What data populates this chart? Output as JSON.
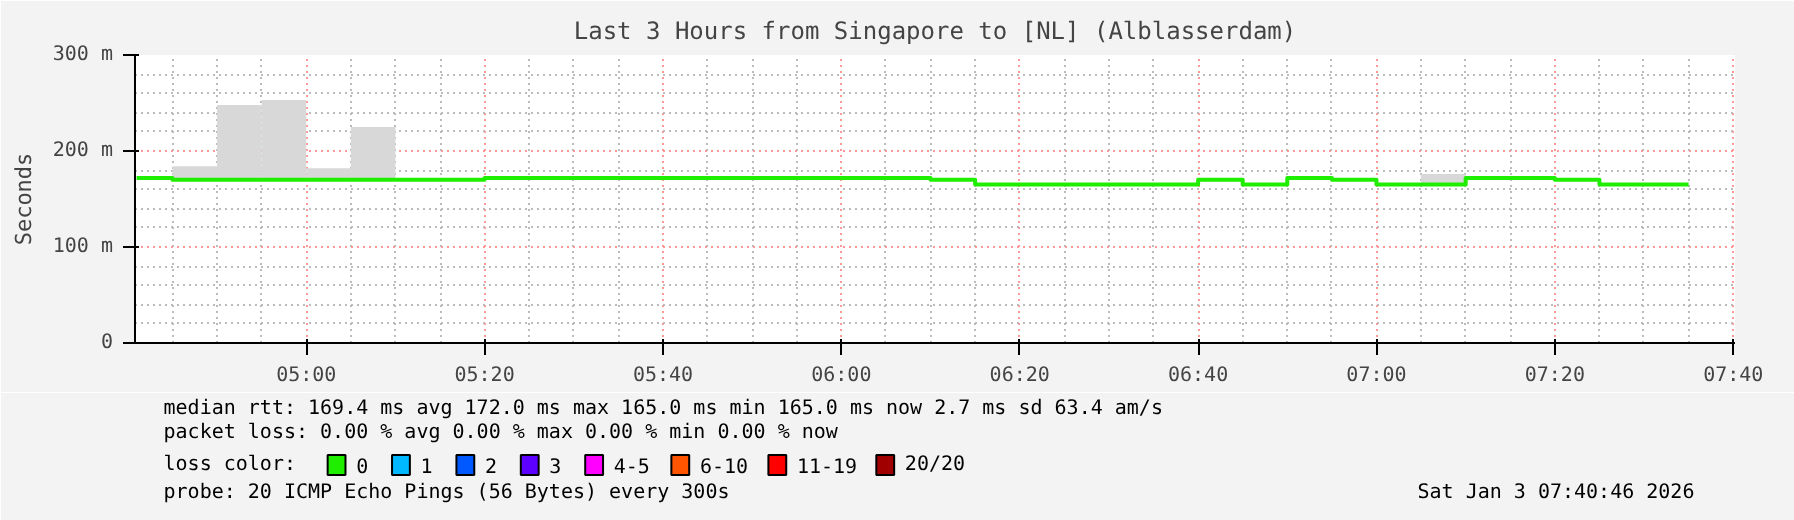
{
  "chart_data": {
    "type": "step",
    "title": "Last 3 Hours from Singapore to [NL] (Alblasserdam)",
    "ylabel": "Seconds",
    "legend_title": "loss color:",
    "legend": "bottom",
    "grid": true,
    "xlim": [
      4.68,
      7.67
    ],
    "xticks": [
      {
        "value": 5.0,
        "label": "05:00"
      },
      {
        "value": 5.3333,
        "label": "05:20"
      },
      {
        "value": 5.6667,
        "label": "05:40"
      },
      {
        "value": 6.0,
        "label": "06:00"
      },
      {
        "value": 6.3333,
        "label": "06:20"
      },
      {
        "value": 6.6667,
        "label": "06:40"
      },
      {
        "value": 7.0,
        "label": "07:00"
      },
      {
        "value": 7.3333,
        "label": "07:20"
      },
      {
        "value": 7.6667,
        "label": "07:40"
      }
    ],
    "ylim": [
      0,
      300
    ],
    "yticks": [
      0,
      {
        "value": 100,
        "label": "100 m"
      },
      {
        "value": 200,
        "label": "200 m"
      },
      {
        "value": 300,
        "label": "300 m"
      }
    ],
    "series": [
      {
        "type": "bar",
        "color": "#d8d8d8",
        "x": [
          4.7917,
          4.875,
          4.9583,
          5.0417,
          5.125,
          7.125
        ],
        "base": [
          170,
          170,
          170,
          170,
          170,
          165
        ],
        "values": [
          14,
          78,
          83,
          12,
          55,
          11
        ]
      },
      {
        "name": "0",
        "color": "#20ee00",
        "x": [
          4.683,
          4.75,
          5.3333,
          6.1667,
          6.25,
          6.6667,
          6.75,
          6.8333,
          6.9167,
          7.0,
          7.1667,
          7.3333,
          7.4167,
          7.5833
        ],
        "values": [
          172,
          170,
          172,
          170,
          165,
          170,
          165,
          172,
          170,
          165,
          172,
          170,
          165,
          165
        ]
      },
      {
        "name": "1",
        "color": "#00b8ff"
      },
      {
        "name": "2",
        "color": "#0059ff"
      },
      {
        "name": "3",
        "color": "#5e00ff"
      },
      {
        "name": "4-5",
        "color": "#ff00ff"
      },
      {
        "name": "6-10",
        "color": "#ff5500"
      },
      {
        "name": "11-19",
        "color": "#ff0000"
      },
      {
        "name": "20/20",
        "color": "#a10000"
      }
    ],
    "annotations": [
      "median rtt:  169.4 ms avg  172.0 ms max  165.0 ms min  165.0 ms now  2.7 ms sd  63.4   am/s",
      "packet loss: 0.00 % avg  0.00 % max  0.00 % min  0.00 % now",
      "probe:       20 ICMP Echo Pings (56 Bytes) every 300s",
      "Sat Jan  3 07:40:46 2026"
    ]
  }
}
